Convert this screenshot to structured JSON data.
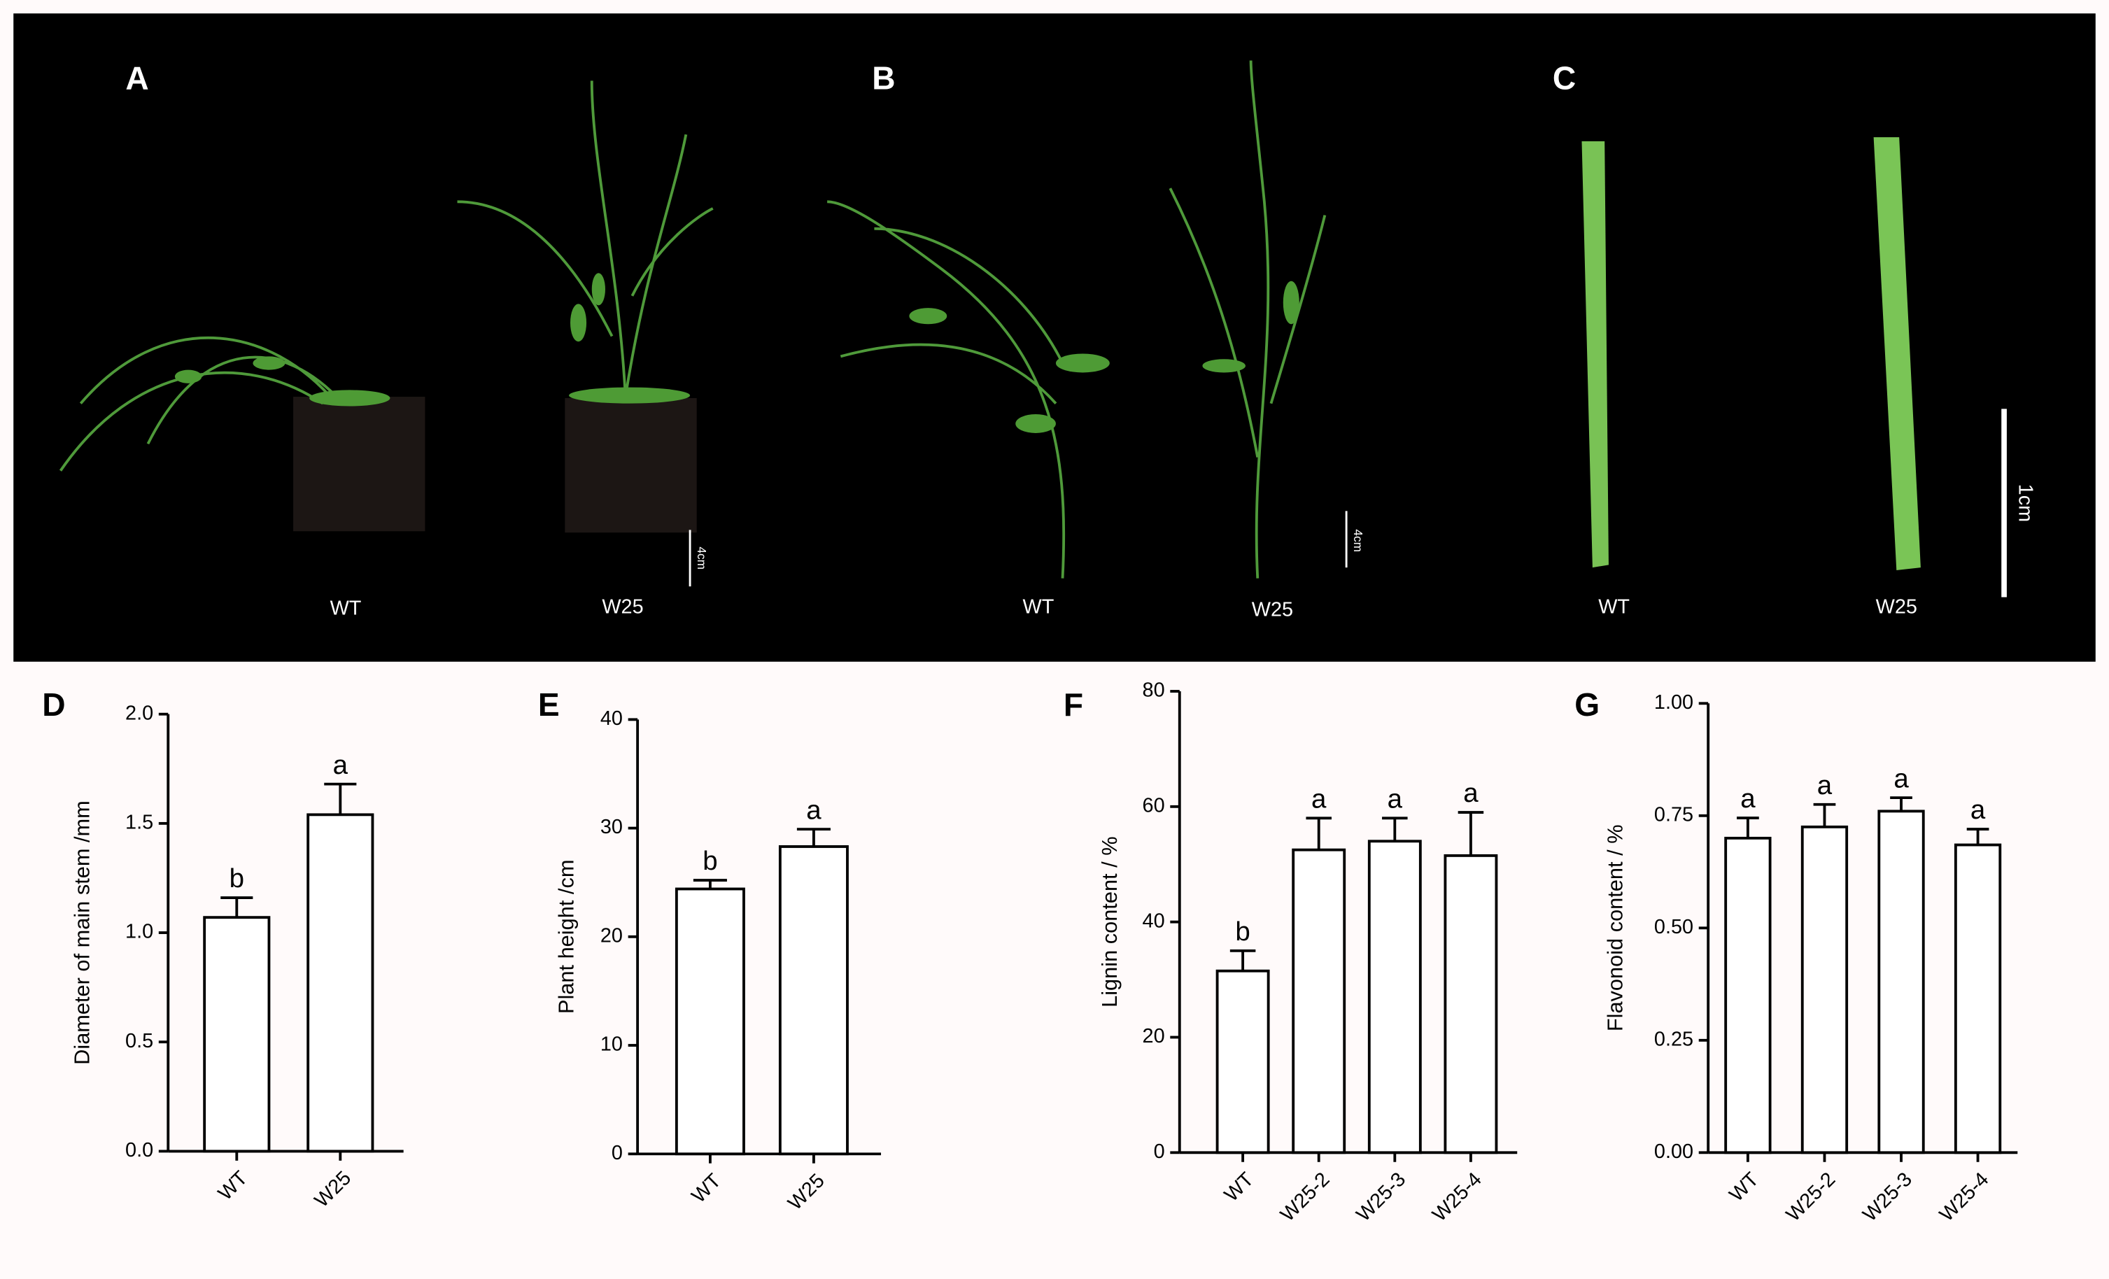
{
  "photos": [
    {
      "label": "A",
      "groups": [
        "WT",
        "W25"
      ],
      "scale": "4cm"
    },
    {
      "label": "B",
      "groups": [
        "WT",
        "W25"
      ],
      "scale": "4cm"
    },
    {
      "label": "C",
      "groups": [
        "WT",
        "W25"
      ],
      "scale": "1cm"
    }
  ],
  "chart_data": [
    {
      "type": "bar",
      "label": "D",
      "ylabel": "Diameter of main stem /mm",
      "categories": [
        "WT",
        "W25"
      ],
      "series": [
        {
          "color": "#ffffff",
          "values": [
            1.07,
            1.54
          ],
          "errors": [
            0.09,
            0.14
          ]
        }
      ],
      "letters": [
        "b",
        "a"
      ],
      "ylim": [
        0,
        2
      ],
      "yticks": [
        {
          "value": 0,
          "label": "0.0"
        },
        0.5,
        {
          "value": 1,
          "label": "1.0"
        },
        1.5,
        {
          "value": 2,
          "label": "2.0"
        }
      ]
    },
    {
      "type": "bar",
      "label": "E",
      "ylabel": "Plant height /cm",
      "categories": [
        "WT",
        "W25"
      ],
      "series": [
        {
          "color": "#ffffff",
          "values": [
            24.4,
            28.3
          ],
          "errors": [
            0.8,
            1.6
          ]
        }
      ],
      "letters": [
        "b",
        "a"
      ],
      "ylim": [
        0,
        40
      ],
      "yticks": [
        0,
        10,
        20,
        30,
        40
      ]
    },
    {
      "type": "bar",
      "label": "F",
      "ylabel": "Lignin content / %",
      "categories": [
        "WT",
        "W25-2",
        "W25-3",
        "W25-4"
      ],
      "series": [
        {
          "color": "#ffffff",
          "values": [
            31.5,
            52.5,
            54,
            51.5
          ],
          "errors": [
            3.5,
            5.5,
            4,
            7.5
          ]
        }
      ],
      "letters": [
        "b",
        "a",
        "a",
        "a"
      ],
      "ylim": [
        0,
        80
      ],
      "yticks": [
        0,
        20,
        40,
        60,
        80
      ]
    },
    {
      "type": "bar",
      "label": "G",
      "ylabel": "Flavonoid content / %",
      "categories": [
        "WT",
        "W25-2",
        "W25-3",
        "W25-4"
      ],
      "series": [
        {
          "color": "#ffffff",
          "values": [
            0.7,
            0.725,
            0.76,
            0.685
          ],
          "errors": [
            0.045,
            0.05,
            0.03,
            0.035
          ]
        }
      ],
      "letters": [
        "a",
        "a",
        "a",
        "a"
      ],
      "ylim": [
        0,
        1
      ],
      "yticks": [
        {
          "value": 0,
          "label": "0.00"
        },
        0.25,
        {
          "value": 0.5,
          "label": "0.50"
        },
        0.75,
        {
          "value": 1,
          "label": "1.00"
        }
      ]
    }
  ]
}
